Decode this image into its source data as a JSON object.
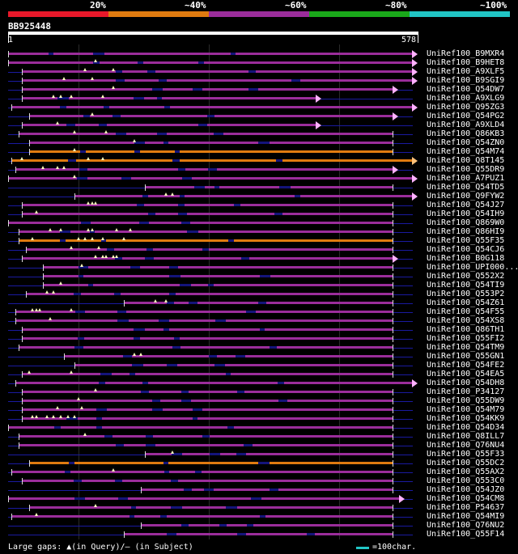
{
  "legend": [
    {
      "label": "20%",
      "color": "#e8182a"
    },
    {
      "label": "~40%",
      "color": "#e07b10"
    },
    {
      "label": "~60%",
      "color": "#9b2d9b"
    },
    {
      "label": "~80%",
      "color": "#1aa81a"
    },
    {
      "label": "~100%",
      "color": "#21c5c5"
    }
  ],
  "query": {
    "name": "BB925448",
    "start": "1",
    "end": "578"
  },
  "footer": {
    "gaps_label": "Large gaps: ▲(in Query)/– (in Subject)",
    "scale_label": "=100char."
  },
  "hits": [
    {
      "name": "UniRef100_B9MXR4",
      "s": 0,
      "e": 578,
      "c": "m",
      "a": 1,
      "g": []
    },
    {
      "name": "UniRef100_B9HET8",
      "s": 0,
      "e": 578,
      "c": "m",
      "a": 1,
      "g": [
        125
      ]
    },
    {
      "name": "UniRef100_A9XLF5",
      "s": 20,
      "e": 578,
      "c": "m",
      "a": 1,
      "g": [
        110,
        150
      ]
    },
    {
      "name": "UniRef100_B9SGI9",
      "s": 20,
      "e": 578,
      "c": "m",
      "a": 1,
      "g": [
        80,
        120
      ]
    },
    {
      "name": "UniRef100_Q54DW7",
      "s": 20,
      "e": 550,
      "c": "m",
      "a": 1,
      "g": [
        150
      ]
    },
    {
      "name": "UniRef100_A9XLG9",
      "s": 20,
      "e": 440,
      "c": "m",
      "a": 1,
      "g": [
        65,
        75,
        90,
        135
      ]
    },
    {
      "name": "UniRef100_Q95ZG3",
      "s": 5,
      "e": 578,
      "c": "m",
      "a": 1,
      "g": []
    },
    {
      "name": "UniRef100_Q54PG2",
      "s": 30,
      "e": 550,
      "c": "m",
      "a": 1,
      "g": [
        120
      ]
    },
    {
      "name": "UniRef100_A9XLD4",
      "s": 20,
      "e": 440,
      "c": "m",
      "a": 1,
      "g": [
        70
      ]
    },
    {
      "name": "UniRef100_Q86KB3",
      "s": 15,
      "e": 550,
      "c": "m",
      "a": 0,
      "g": [
        95,
        140
      ]
    },
    {
      "name": "UniRef100_Q54ZN0",
      "s": 30,
      "e": 550,
      "c": "m",
      "a": 0,
      "g": [
        180
      ]
    },
    {
      "name": "UniRef100_Q54M74",
      "s": 30,
      "e": 550,
      "c": "o",
      "a": 0,
      "g": [
        95
      ]
    },
    {
      "name": "UniRef100_Q8T145",
      "s": 5,
      "e": 578,
      "c": "o",
      "a": 1,
      "g": [
        20,
        115,
        135
      ]
    },
    {
      "name": "UniRef100_Q55DR9",
      "s": 10,
      "e": 550,
      "c": "m",
      "a": 1,
      "g": [
        50,
        70,
        80
      ]
    },
    {
      "name": "UniRef100_A7PUZ1",
      "s": 0,
      "e": 578,
      "c": "m",
      "a": 1,
      "g": [
        95
      ]
    },
    {
      "name": "UniRef100_Q54TD5",
      "s": 195,
      "e": 550,
      "c": "m",
      "a": 0,
      "g": []
    },
    {
      "name": "UniRef100_Q9FYW2",
      "s": 95,
      "e": 578,
      "c": "m",
      "a": 1,
      "g": [
        225,
        235
      ]
    },
    {
      "name": "UniRef100_Q54J27",
      "s": 20,
      "e": 550,
      "c": "m",
      "a": 0,
      "g": [
        115,
        120,
        125
      ]
    },
    {
      "name": "UniRef100_Q54IH9",
      "s": 20,
      "e": 550,
      "c": "m",
      "a": 0,
      "g": [
        40
      ]
    },
    {
      "name": "UniRef100_Q869W0",
      "s": 0,
      "e": 550,
      "c": "m",
      "a": 0,
      "g": []
    },
    {
      "name": "UniRef100_Q86HI9",
      "s": 15,
      "e": 550,
      "c": "m",
      "a": 0,
      "g": [
        60,
        75,
        115,
        120,
        155,
        175
      ]
    },
    {
      "name": "UniRef100_Q55F35",
      "s": 15,
      "e": 550,
      "c": "o",
      "a": 0,
      "g": [
        35,
        100,
        110,
        120,
        135,
        165
      ]
    },
    {
      "name": "UniRef100_Q54CJ6",
      "s": 25,
      "e": 550,
      "c": "m",
      "a": 0,
      "g": [
        90,
        130
      ]
    },
    {
      "name": "UniRef100_B0G118",
      "s": 20,
      "e": 550,
      "c": "m",
      "a": 1,
      "g": [
        125,
        135,
        140,
        150,
        155
      ]
    },
    {
      "name": "UniRef100_UPI000...",
      "s": 50,
      "e": 550,
      "c": "m",
      "a": 0,
      "g": [
        105
      ]
    },
    {
      "name": "UniRef100_Q552X2",
      "s": 50,
      "e": 550,
      "c": "m",
      "a": 0,
      "g": []
    },
    {
      "name": "UniRef100_Q54TI9",
      "s": 50,
      "e": 550,
      "c": "m",
      "a": 0,
      "g": [
        75
      ]
    },
    {
      "name": "UniRef100_Q553P2",
      "s": 25,
      "e": 550,
      "c": "m",
      "a": 0,
      "g": [
        55,
        65
      ]
    },
    {
      "name": "UniRef100_Q54Z61",
      "s": 165,
      "e": 550,
      "c": "m",
      "a": 0,
      "g": [
        210,
        225
      ]
    },
    {
      "name": "UniRef100_Q54F55",
      "s": 10,
      "e": 550,
      "c": "m",
      "a": 0,
      "g": [
        35,
        40,
        45,
        90
      ]
    },
    {
      "name": "UniRef100_Q54XS8",
      "s": 10,
      "e": 550,
      "c": "m",
      "a": 0,
      "g": [
        60
      ]
    },
    {
      "name": "UniRef100_Q86TH1",
      "s": 20,
      "e": 550,
      "c": "m",
      "a": 0,
      "g": []
    },
    {
      "name": "UniRef100_Q55FI2",
      "s": 20,
      "e": 550,
      "c": "m",
      "a": 0,
      "g": []
    },
    {
      "name": "UniRef100_Q54TM9",
      "s": 15,
      "e": 550,
      "c": "m",
      "a": 0,
      "g": []
    },
    {
      "name": "UniRef100_Q55GN1",
      "s": 80,
      "e": 550,
      "c": "m",
      "a": 0,
      "g": [
        180,
        190
      ]
    },
    {
      "name": "UniRef100_Q54FE2",
      "s": 95,
      "e": 550,
      "c": "m",
      "a": 0,
      "g": []
    },
    {
      "name": "UniRef100_Q54EA5",
      "s": 20,
      "e": 550,
      "c": "m",
      "a": 0,
      "g": [
        30,
        90
      ]
    },
    {
      "name": "UniRef100_Q54DH8",
      "s": 10,
      "e": 578,
      "c": "m",
      "a": 1,
      "g": []
    },
    {
      "name": "UniRef100_P34127",
      "s": 20,
      "e": 550,
      "c": "m",
      "a": 0,
      "g": [
        125
      ]
    },
    {
      "name": "UniRef100_Q55DW9",
      "s": 20,
      "e": 550,
      "c": "m",
      "a": 0,
      "g": [
        100
      ]
    },
    {
      "name": "UniRef100_Q54M79",
      "s": 20,
      "e": 550,
      "c": "m",
      "a": 0,
      "g": [
        70,
        105
      ]
    },
    {
      "name": "UniRef100_Q54KK9",
      "s": 20,
      "e": 550,
      "c": "m",
      "a": 0,
      "g": [
        35,
        40,
        55,
        65,
        75,
        85,
        95
      ]
    },
    {
      "name": "UniRef100_Q54D34",
      "s": 0,
      "e": 550,
      "c": "m",
      "a": 0,
      "g": []
    },
    {
      "name": "UniRef100_Q8ILL7",
      "s": 15,
      "e": 550,
      "c": "m",
      "a": 0,
      "g": [
        110
      ]
    },
    {
      "name": "UniRef100_Q76NU4",
      "s": 15,
      "e": 550,
      "c": "m",
      "a": 0,
      "g": []
    },
    {
      "name": "UniRef100_Q55F33",
      "s": 195,
      "e": 550,
      "c": "m",
      "a": 0,
      "g": [
        235
      ]
    },
    {
      "name": "UniRef100_Q55DC2",
      "s": 30,
      "e": 550,
      "c": "o",
      "a": 0,
      "g": []
    },
    {
      "name": "UniRef100_Q55AX2",
      "s": 5,
      "e": 550,
      "c": "m",
      "a": 0,
      "g": [
        150
      ]
    },
    {
      "name": "UniRef100_Q553C0",
      "s": 20,
      "e": 550,
      "c": "m",
      "a": 0,
      "g": []
    },
    {
      "name": "UniRef100_Q54JZ0",
      "s": 190,
      "e": 550,
      "c": "m",
      "a": 0,
      "g": []
    },
    {
      "name": "UniRef100_Q54CM8",
      "s": 0,
      "e": 560,
      "c": "m",
      "a": 1,
      "g": []
    },
    {
      "name": "UniRef100_P54637",
      "s": 30,
      "e": 550,
      "c": "m",
      "a": 0,
      "g": [
        125
      ]
    },
    {
      "name": "UniRef100_Q54MI9",
      "s": 5,
      "e": 550,
      "c": "m",
      "a": 0,
      "g": [
        40
      ]
    },
    {
      "name": "UniRef100_Q76NU2",
      "s": 190,
      "e": 550,
      "c": "m",
      "a": 0,
      "g": []
    },
    {
      "name": "UniRef100_Q55F14",
      "s": 165,
      "e": 550,
      "c": "m",
      "a": 0,
      "g": []
    }
  ]
}
